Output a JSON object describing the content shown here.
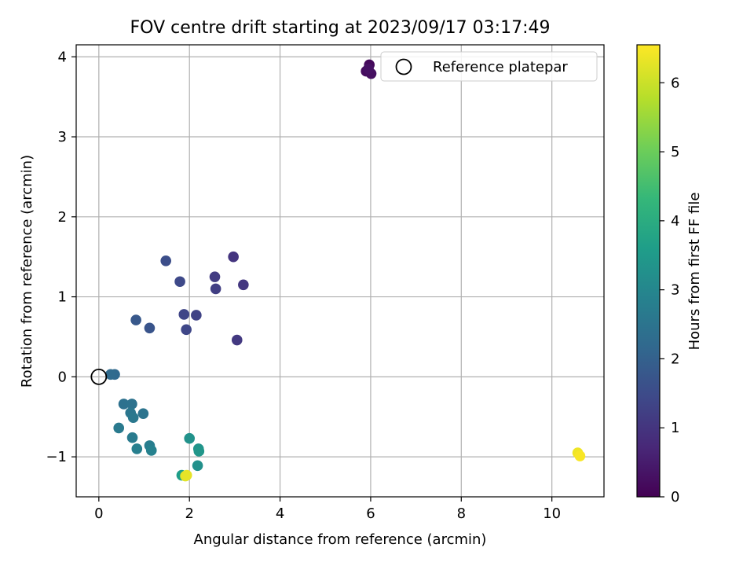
{
  "chart_data": {
    "type": "scatter",
    "title": "FOV centre drift starting at 2023/09/17 03:17:49",
    "xlabel": "Angular distance from reference (arcmin)",
    "ylabel": "Rotation from reference (arcmin)",
    "xlim": [
      -0.5,
      11.15
    ],
    "ylim": [
      -1.5,
      4.15
    ],
    "xticks": [
      0,
      2,
      4,
      6,
      8,
      10
    ],
    "yticks": [
      -1,
      0,
      1,
      2,
      3,
      4
    ],
    "xtick_labels": [
      "0",
      "2",
      "4",
      "6",
      "8",
      "10"
    ],
    "ytick_labels": [
      "−1",
      "0",
      "1",
      "2",
      "3",
      "4"
    ],
    "grid": true,
    "colormap": "viridis",
    "colorbar": {
      "label": "Hours from first FF file",
      "range": [
        0,
        6.55
      ],
      "ticks": [
        0,
        1,
        2,
        3,
        4,
        5,
        6
      ],
      "tick_labels": [
        "0",
        "1",
        "2",
        "3",
        "4",
        "5",
        "6"
      ]
    },
    "legend": {
      "position": "top-right",
      "entries": [
        "Reference platepar"
      ]
    },
    "reference_point": {
      "x": 0,
      "y": 0
    },
    "points": [
      {
        "x": 5.93,
        "y": 3.83,
        "c": 0.1
      },
      {
        "x": 5.97,
        "y": 3.9,
        "c": 0.15
      },
      {
        "x": 5.9,
        "y": 3.82,
        "c": 0.2
      },
      {
        "x": 6.01,
        "y": 3.79,
        "c": 0.25
      },
      {
        "x": 5.95,
        "y": 3.85,
        "c": 0.3
      },
      {
        "x": 2.97,
        "y": 1.5,
        "c": 1.0
      },
      {
        "x": 3.19,
        "y": 1.15,
        "c": 1.05
      },
      {
        "x": 3.05,
        "y": 0.46,
        "c": 1.1
      },
      {
        "x": 2.56,
        "y": 1.25,
        "c": 1.15
      },
      {
        "x": 2.58,
        "y": 1.1,
        "c": 1.2
      },
      {
        "x": 2.15,
        "y": 0.77,
        "c": 1.3
      },
      {
        "x": 1.88,
        "y": 0.78,
        "c": 1.35
      },
      {
        "x": 1.93,
        "y": 0.59,
        "c": 1.4
      },
      {
        "x": 1.79,
        "y": 1.19,
        "c": 1.45
      },
      {
        "x": 1.48,
        "y": 1.45,
        "c": 1.55
      },
      {
        "x": 1.12,
        "y": 0.61,
        "c": 1.7
      },
      {
        "x": 0.82,
        "y": 0.71,
        "c": 1.8
      },
      {
        "x": 0.35,
        "y": 0.03,
        "c": 2.2
      },
      {
        "x": 0.26,
        "y": 0.03,
        "c": 2.25
      },
      {
        "x": 0.55,
        "y": -0.34,
        "c": 2.4
      },
      {
        "x": 0.73,
        "y": -0.34,
        "c": 2.45
      },
      {
        "x": 0.98,
        "y": -0.46,
        "c": 2.5
      },
      {
        "x": 0.7,
        "y": -0.45,
        "c": 2.55
      },
      {
        "x": 0.76,
        "y": -0.51,
        "c": 2.6
      },
      {
        "x": 0.44,
        "y": -0.64,
        "c": 2.65
      },
      {
        "x": 0.74,
        "y": -0.76,
        "c": 2.7
      },
      {
        "x": 1.12,
        "y": -0.86,
        "c": 2.75
      },
      {
        "x": 0.84,
        "y": -0.9,
        "c": 2.8
      },
      {
        "x": 1.16,
        "y": -0.92,
        "c": 2.85
      },
      {
        "x": 2.0,
        "y": -0.77,
        "c": 3.3
      },
      {
        "x": 2.2,
        "y": -0.9,
        "c": 3.35
      },
      {
        "x": 2.21,
        "y": -0.93,
        "c": 3.4
      },
      {
        "x": 2.18,
        "y": -1.11,
        "c": 3.25
      },
      {
        "x": 1.83,
        "y": -1.23,
        "c": 3.6
      },
      {
        "x": 1.91,
        "y": -1.24,
        "c": 6.2
      },
      {
        "x": 1.94,
        "y": -1.23,
        "c": 6.3
      },
      {
        "x": 10.57,
        "y": -0.95,
        "c": 6.4
      },
      {
        "x": 10.62,
        "y": -0.99,
        "c": 6.5
      }
    ]
  }
}
